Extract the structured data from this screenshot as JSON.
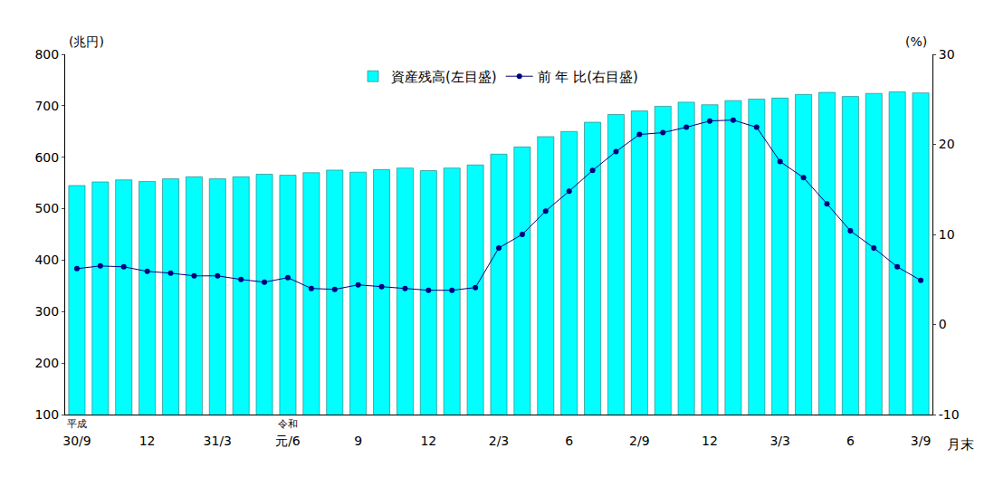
{
  "chart_data": {
    "type": "bar",
    "categories": [
      "30/9",
      null,
      null,
      "12",
      null,
      null,
      "31/3",
      null,
      null,
      "元/6",
      null,
      null,
      "9",
      null,
      null,
      "12",
      null,
      null,
      "2/3",
      null,
      null,
      "6",
      null,
      null,
      "2/9",
      null,
      null,
      "12",
      null,
      null,
      "3/3",
      null,
      null,
      "6",
      null,
      null,
      "3/9"
    ],
    "series": [
      {
        "name": "資産残高(左目盛)",
        "type": "bar",
        "color": "#00ffff",
        "values": [
          545,
          552,
          556,
          553,
          558,
          562,
          558,
          562,
          567,
          565,
          570,
          575,
          571,
          576,
          579,
          574,
          579,
          585,
          606,
          620,
          640,
          650,
          668,
          683,
          690,
          699,
          707,
          702,
          710,
          713,
          715,
          722,
          726,
          718,
          724,
          727,
          725
        ]
      },
      {
        "name": "前 年 比(右目盛)",
        "type": "line",
        "axis": "y2",
        "color": "#000080",
        "marker": "circle",
        "line_style": "solid",
        "values": [
          6.2,
          6.5,
          6.4,
          5.9,
          5.7,
          5.4,
          5.4,
          5.0,
          4.7,
          5.2,
          4.0,
          3.9,
          4.4,
          4.2,
          4.0,
          3.8,
          3.8,
          4.1,
          8.5,
          10.0,
          12.6,
          14.8,
          17.1,
          19.2,
          21.1,
          21.3,
          21.9,
          22.6,
          22.7,
          21.9,
          18.1,
          16.3,
          13.4,
          10.4,
          8.5,
          6.4,
          4.9
        ]
      }
    ],
    "ylabel": "(兆円)",
    "y2label": "(%)",
    "xlabel": "月末",
    "annotations": [
      {
        "text": "平成",
        "category": "30/9"
      },
      {
        "text": "令和",
        "category": "元/6"
      }
    ],
    "ylim": [
      100,
      800
    ],
    "yticks": [
      100,
      200,
      300,
      400,
      500,
      600,
      700,
      800
    ],
    "y2lim": [
      -10,
      30
    ],
    "y2ticks": [
      -10,
      0,
      10,
      20,
      30
    ],
    "grid": false,
    "legend": "top"
  }
}
